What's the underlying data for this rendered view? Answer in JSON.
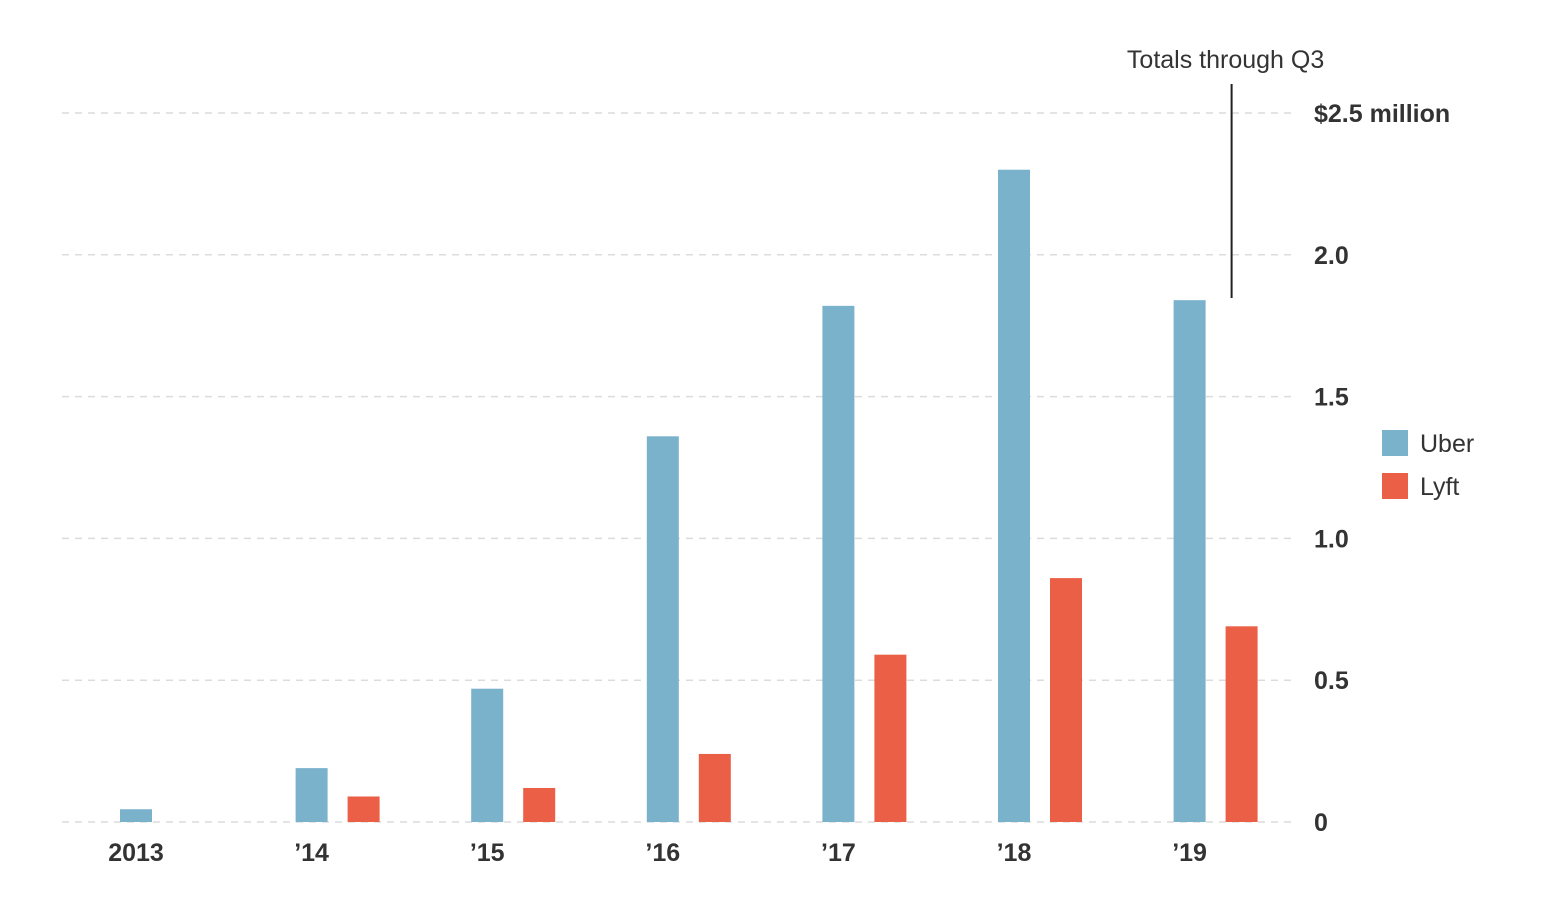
{
  "chart_data": {
    "type": "bar",
    "categories": [
      "2013",
      "’14",
      "’15",
      "’16",
      "’17",
      "’18",
      "’19"
    ],
    "series": [
      {
        "name": "Uber",
        "color": "#7ab1cb",
        "values": [
          0.045,
          0.19,
          0.47,
          1.36,
          1.82,
          2.3,
          1.84
        ]
      },
      {
        "name": "Lyft",
        "color": "#ea5f46",
        "values": [
          0,
          0.09,
          0.12,
          0.24,
          0.59,
          0.86,
          0.69
        ]
      }
    ],
    "y_ticks": [
      {
        "value": 0,
        "label": "0"
      },
      {
        "value": 0.5,
        "label": "0.5"
      },
      {
        "value": 1.0,
        "label": "1.0"
      },
      {
        "value": 1.5,
        "label": "1.5"
      },
      {
        "value": 2.0,
        "label": "2.0"
      },
      {
        "value": 2.5,
        "label": "$2.5 million"
      }
    ],
    "ylim": [
      0,
      2.5
    ],
    "grid": true,
    "legend_position": "right",
    "annotation": {
      "text": "Totals through Q3",
      "category": "’19"
    }
  }
}
